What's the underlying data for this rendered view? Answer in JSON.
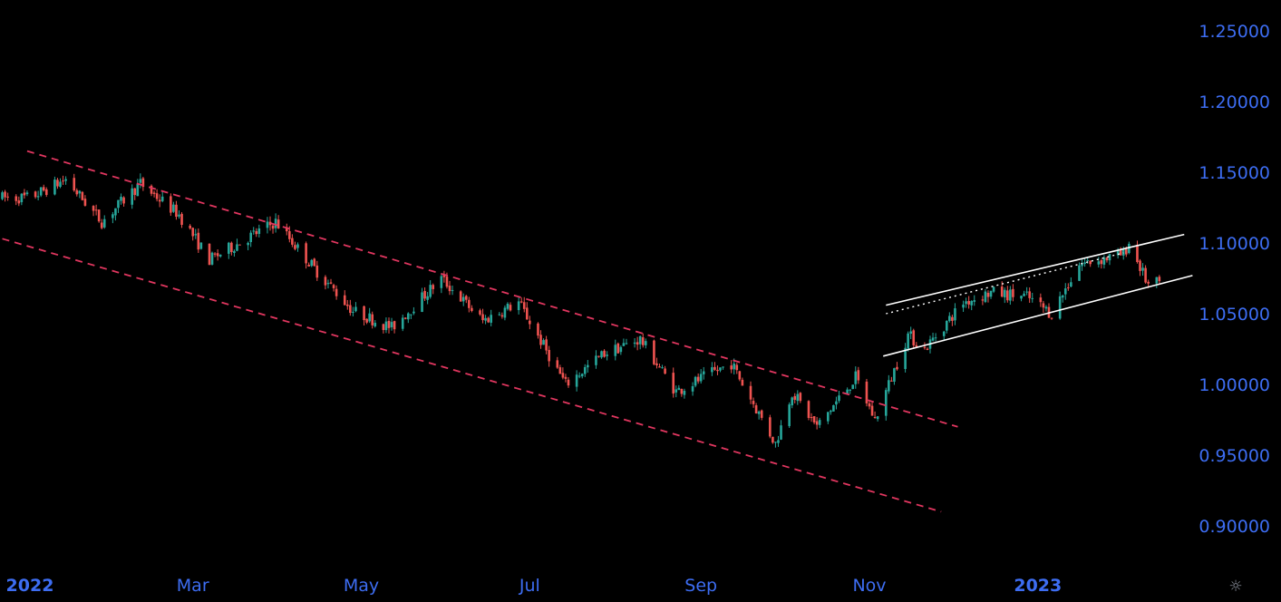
{
  "chart_data": {
    "type": "candlestick",
    "symbol_hint": "EURUSD-like daily candles",
    "x_axis": {
      "labels": [
        {
          "text": "2022",
          "date": "2022-01-01",
          "bold": true
        },
        {
          "text": "Mar",
          "date": "2022-03-01",
          "bold": false
        },
        {
          "text": "May",
          "date": "2022-05-01",
          "bold": false
        },
        {
          "text": "Jul",
          "date": "2022-07-01",
          "bold": false
        },
        {
          "text": "Sep",
          "date": "2022-09-01",
          "bold": false
        },
        {
          "text": "Nov",
          "date": "2022-11-01",
          "bold": false
        },
        {
          "text": "2023",
          "date": "2023-01-01",
          "bold": true
        }
      ],
      "range": [
        "2021-12-22",
        "2023-03-20"
      ]
    },
    "y_axis": {
      "ticks": [
        "1.25000",
        "1.20000",
        "1.15000",
        "1.10000",
        "1.05000",
        "1.00000",
        "0.95000",
        "0.90000"
      ],
      "tick_values": [
        1.25,
        1.2,
        1.15,
        1.1,
        1.05,
        1.0,
        0.95,
        0.9
      ],
      "range": [
        0.88,
        1.27
      ],
      "position": "right"
    },
    "colors": {
      "background": "#000000",
      "up": "#26a69a",
      "down": "#ef5350",
      "axis_text": "#3d6df2",
      "downtrend_channel": "#e0365f",
      "uptrend_channel": "#ffffff"
    },
    "price_path": [
      {
        "date": "2022-01-01",
        "price": 1.132
      },
      {
        "date": "2022-01-14",
        "price": 1.145
      },
      {
        "date": "2022-01-27",
        "price": 1.115
      },
      {
        "date": "2022-02-10",
        "price": 1.142
      },
      {
        "date": "2022-02-24",
        "price": 1.12
      },
      {
        "date": "2022-03-07",
        "price": 1.088
      },
      {
        "date": "2022-03-31",
        "price": 1.115
      },
      {
        "date": "2022-04-14",
        "price": 1.082
      },
      {
        "date": "2022-04-28",
        "price": 1.052
      },
      {
        "date": "2022-05-12",
        "price": 1.04
      },
      {
        "date": "2022-05-30",
        "price": 1.075
      },
      {
        "date": "2022-06-14",
        "price": 1.045
      },
      {
        "date": "2022-06-27",
        "price": 1.058
      },
      {
        "date": "2022-07-14",
        "price": 1.0
      },
      {
        "date": "2022-07-28",
        "price": 1.022
      },
      {
        "date": "2022-08-10",
        "price": 1.032
      },
      {
        "date": "2022-08-23",
        "price": 0.995
      },
      {
        "date": "2022-09-12",
        "price": 1.015
      },
      {
        "date": "2022-09-28",
        "price": 0.958
      },
      {
        "date": "2022-10-04",
        "price": 0.995
      },
      {
        "date": "2022-10-13",
        "price": 0.97
      },
      {
        "date": "2022-10-27",
        "price": 1.005
      },
      {
        "date": "2022-11-03",
        "price": 0.975
      },
      {
        "date": "2022-11-15",
        "price": 1.035
      },
      {
        "date": "2022-11-21",
        "price": 1.025
      },
      {
        "date": "2022-12-05",
        "price": 1.058
      },
      {
        "date": "2022-12-15",
        "price": 1.065
      },
      {
        "date": "2022-12-28",
        "price": 1.062
      },
      {
        "date": "2023-01-06",
        "price": 1.05
      },
      {
        "date": "2023-01-16",
        "price": 1.085
      },
      {
        "date": "2023-02-01",
        "price": 1.092
      },
      {
        "date": "2023-02-03",
        "price": 1.1
      },
      {
        "date": "2023-02-10",
        "price": 1.07
      },
      {
        "date": "2023-02-14",
        "price": 1.072
      }
    ],
    "trendlines": [
      {
        "name": "downtrend-upper",
        "style": "dashed",
        "color": "#e0365f",
        "start": {
          "date": "2021-12-31",
          "price": 1.165
        },
        "end": {
          "date": "2022-12-03",
          "price": 0.97
        }
      },
      {
        "name": "downtrend-lower",
        "style": "dashed",
        "color": "#e0365f",
        "start": {
          "date": "2021-12-22",
          "price": 1.103
        },
        "end": {
          "date": "2022-11-27",
          "price": 0.91
        }
      },
      {
        "name": "uptrend-upper",
        "style": "solid",
        "color": "#ffffff",
        "start": {
          "date": "2022-11-07",
          "price": 1.056
        },
        "end": {
          "date": "2023-02-23",
          "price": 1.106
        }
      },
      {
        "name": "uptrend-lower",
        "style": "solid",
        "color": "#ffffff",
        "start": {
          "date": "2022-11-06",
          "price": 1.02
        },
        "end": {
          "date": "2023-02-26",
          "price": 1.077
        }
      },
      {
        "name": "uptrend-midline",
        "style": "dotted",
        "color": "#ffffff",
        "start": {
          "date": "2022-11-07",
          "price": 1.05
        },
        "end": {
          "date": "2023-02-01",
          "price": 1.093
        }
      }
    ],
    "grid": false,
    "legend": "none"
  },
  "ui": {
    "settings_icon": "settings-icon",
    "settings_glyph": "☼"
  }
}
